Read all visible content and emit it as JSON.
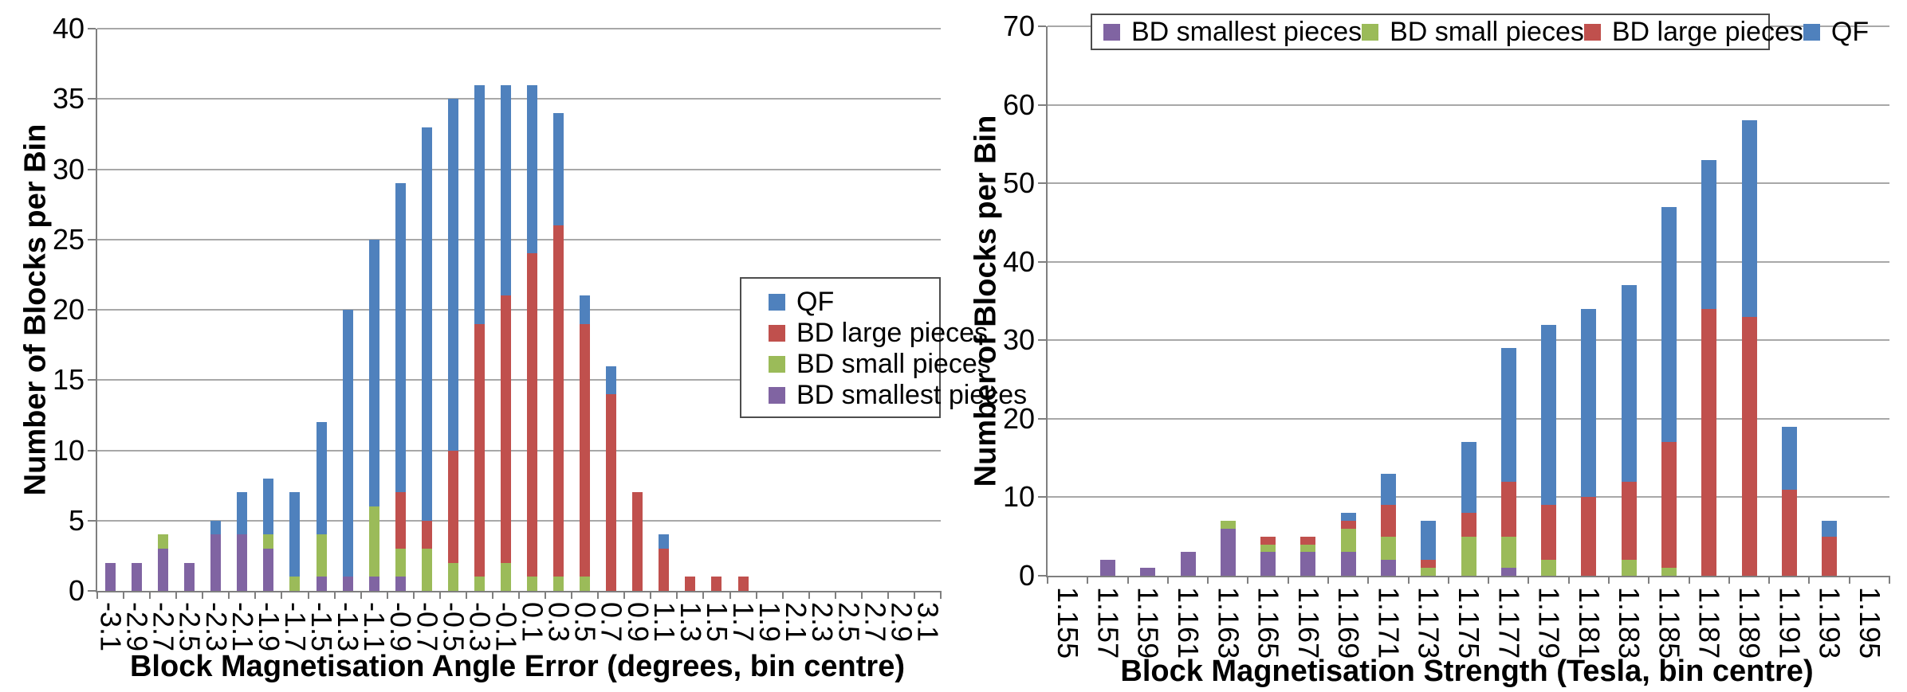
{
  "colors": {
    "qf_blue": "#4F81BD",
    "bd_large_red": "#C0504D",
    "bd_small_green": "#9BBB59",
    "bd_smallest_purple": "#8064A2",
    "gridline": "#A8A8A8",
    "axis": "#7F7F7F"
  },
  "chart_data": [
    {
      "type": "bar",
      "stacked": true,
      "xlabel": "Block Magnetisation Angle Error (degrees, bin centre)",
      "ylabel": "Number of Blocks per Bin",
      "ylim": [
        0,
        40
      ],
      "ytick_step": 5,
      "grid": true,
      "legend_position": "inside-right",
      "legend_order": [
        "QF",
        "BD large pieces",
        "BD small pieces",
        "BD smallest pieces"
      ],
      "categories": [
        "-3.1",
        "-2.9",
        "-2.7",
        "-2.5",
        "-2.3",
        "-2.1",
        "-1.9",
        "-1.7",
        "-1.5",
        "-1.3",
        "-1.1",
        "-0.9",
        "-0.7",
        "-0.5",
        "-0.3",
        "-0.1",
        "0.1",
        "0.3",
        "0.5",
        "0.7",
        "0.9",
        "1.1",
        "1.3",
        "1.5",
        "1.7",
        "1.9",
        "2.1",
        "2.3",
        "2.5",
        "2.7",
        "2.9",
        "3.1"
      ],
      "series": [
        {
          "name": "BD smallest pieces",
          "color": "#8064A2",
          "values": [
            2,
            2,
            3,
            2,
            4,
            4,
            3,
            0,
            1,
            1,
            1,
            1,
            0,
            0,
            0,
            0,
            0,
            0,
            0,
            0,
            0,
            0,
            0,
            0,
            0,
            0,
            0,
            0,
            0,
            0,
            0,
            0
          ]
        },
        {
          "name": "BD small pieces",
          "color": "#9BBB59",
          "values": [
            0,
            0,
            1,
            0,
            0,
            0,
            1,
            1,
            3,
            0,
            5,
            2,
            3,
            2,
            1,
            2,
            1,
            1,
            1,
            0,
            0,
            0,
            0,
            0,
            0,
            0,
            0,
            0,
            0,
            0,
            0,
            0
          ]
        },
        {
          "name": "BD large pieces",
          "color": "#C0504D",
          "values": [
            0,
            0,
            0,
            0,
            0,
            0,
            0,
            0,
            0,
            0,
            0,
            4,
            2,
            8,
            18,
            19,
            23,
            25,
            18,
            14,
            7,
            3,
            1,
            1,
            1,
            0,
            0,
            0,
            0,
            0,
            0,
            0
          ]
        },
        {
          "name": "QF",
          "color": "#4F81BD",
          "values": [
            0,
            0,
            0,
            0,
            1,
            3,
            4,
            6,
            8,
            19,
            19,
            22,
            28,
            25,
            17,
            15,
            12,
            8,
            2,
            2,
            0,
            1,
            0,
            0,
            0,
            0,
            0,
            0,
            0,
            0,
            0,
            0
          ]
        }
      ]
    },
    {
      "type": "bar",
      "stacked": true,
      "xlabel": "Block Magnetisation Strength (Tesla, bin centre)",
      "ylabel": "Number of Blocks per Bin",
      "ylim": [
        0,
        70
      ],
      "ytick_step": 10,
      "grid": true,
      "legend_position": "top",
      "legend_order": [
        "BD smallest pieces",
        "BD small pieces",
        "BD large pieces",
        "QF"
      ],
      "categories": [
        "1.155",
        "1.157",
        "1.159",
        "1.161",
        "1.163",
        "1.165",
        "1.167",
        "1.169",
        "1.171",
        "1.173",
        "1.175",
        "1.177",
        "1.179",
        "1.181",
        "1.183",
        "1.185",
        "1.187",
        "1.189",
        "1.191",
        "1.193",
        "1.195"
      ],
      "series": [
        {
          "name": "BD smallest pieces",
          "color": "#8064A2",
          "values": [
            0,
            2,
            1,
            3,
            6,
            3,
            3,
            3,
            2,
            0,
            0,
            1,
            0,
            0,
            0,
            0,
            0,
            0,
            0,
            0,
            0
          ]
        },
        {
          "name": "BD small pieces",
          "color": "#9BBB59",
          "values": [
            0,
            0,
            0,
            0,
            1,
            1,
            1,
            3,
            3,
            1,
            5,
            4,
            2,
            0,
            2,
            1,
            0,
            0,
            0,
            0,
            0
          ]
        },
        {
          "name": "BD large pieces",
          "color": "#C0504D",
          "values": [
            0,
            0,
            0,
            0,
            0,
            1,
            1,
            1,
            4,
            1,
            3,
            7,
            7,
            10,
            10,
            16,
            34,
            33,
            11,
            5,
            0
          ]
        },
        {
          "name": "QF",
          "color": "#4F81BD",
          "values": [
            0,
            0,
            0,
            0,
            0,
            0,
            0,
            1,
            4,
            5,
            9,
            17,
            23,
            24,
            25,
            30,
            19,
            25,
            8,
            2,
            0
          ]
        }
      ]
    }
  ]
}
